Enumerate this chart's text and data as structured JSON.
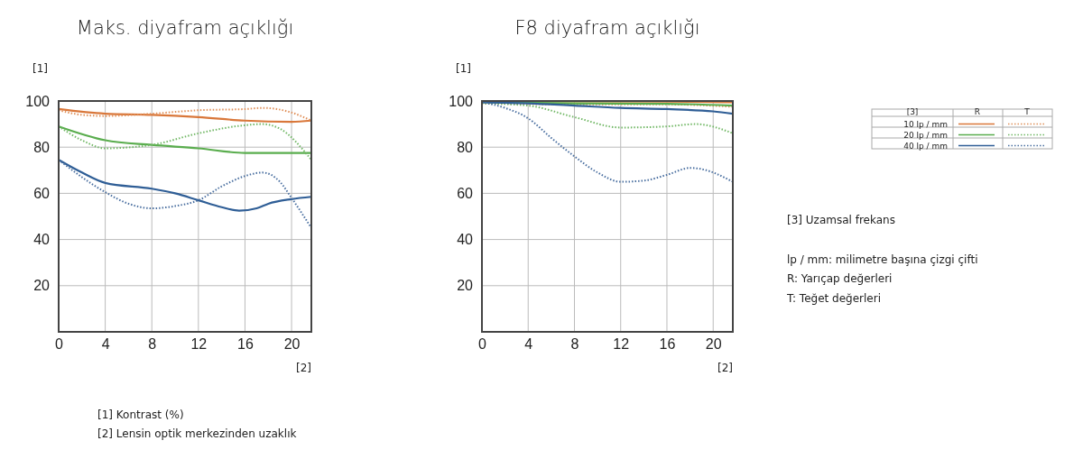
{
  "chart_data": [
    {
      "type": "line",
      "title": "Maks. diyafram açıklığı",
      "xlabel": "[2]",
      "ylabel": "[1]",
      "xlim": [
        0,
        21.7
      ],
      "ylim": [
        0,
        100
      ],
      "xticks": [
        0,
        4,
        8,
        12,
        16,
        20
      ],
      "yticks": [
        {
          "value": 0,
          "label": null
        },
        20,
        40,
        60,
        80,
        100
      ],
      "grid": true,
      "legend": false,
      "annotations": [
        "[1] Kontrast (%)",
        "[2] Lensin optik merkezinden uzaklık"
      ],
      "series": [
        {
          "color": "#d9773a",
          "line_style": "solid",
          "x": [
            0,
            4,
            8,
            12,
            16,
            20,
            21.7
          ],
          "values": [
            96.5,
            94.5,
            94,
            93,
            91.5,
            91,
            91.5
          ]
        },
        {
          "color": "#e0905a",
          "line_style": "dotted",
          "x": [
            0,
            2,
            4,
            8,
            12,
            16,
            17.5,
            20,
            21.7
          ],
          "values": [
            96,
            94,
            93.5,
            94.5,
            96,
            96.5,
            97,
            95,
            91.5
          ]
        },
        {
          "color": "#5aad4e",
          "line_style": "solid",
          "x": [
            0,
            4,
            8,
            12,
            16,
            20,
            21.7
          ],
          "values": [
            89,
            83,
            81,
            79.5,
            77.5,
            77.5,
            77.5
          ]
        },
        {
          "color": "#72b866",
          "line_style": "dotted",
          "x": [
            0,
            2,
            4,
            8,
            12,
            16,
            17.5,
            19,
            21.7
          ],
          "values": [
            89,
            83,
            79.5,
            81,
            86,
            89.5,
            90,
            88,
            74.5
          ]
        },
        {
          "color": "#2f5e96",
          "line_style": "solid",
          "x": [
            0,
            2,
            4,
            8,
            10,
            12,
            14,
            15.5,
            17,
            18,
            20,
            21.7
          ],
          "values": [
            74.5,
            69,
            64.5,
            62,
            60,
            57,
            54,
            52.5,
            53.5,
            55.5,
            57.5,
            58.5
          ]
        },
        {
          "color": "#4a6fa0",
          "line_style": "dotted",
          "x": [
            0,
            2,
            4,
            6,
            8,
            10,
            12,
            14,
            16,
            17.5,
            19,
            20,
            21.7
          ],
          "values": [
            74.5,
            67,
            60.5,
            55.5,
            53.5,
            54.5,
            57,
            63,
            67.5,
            69,
            65,
            58,
            45
          ]
        }
      ]
    },
    {
      "type": "line",
      "title": "F8 diyafram açıklığı",
      "xlabel": "[2]",
      "ylabel": "[1]",
      "xlim": [
        0,
        21.7
      ],
      "ylim": [
        0,
        100
      ],
      "xticks": [
        0,
        4,
        8,
        12,
        16,
        20
      ],
      "yticks": [
        {
          "value": 0,
          "label": null
        },
        20,
        40,
        60,
        80,
        100
      ],
      "grid": true,
      "legend": "right",
      "legend_title": "[3]",
      "annotations": [
        "R",
        "T",
        "[3] Uzamsal frekans",
        "lp / mm: milimetre başına çizgi çifti",
        "R: Yarıçap değerleri",
        "T: Teğet değerleri"
      ],
      "series": [
        {
          "name": "10 lp / mm",
          "color": "#d9773a",
          "line_style": "solid",
          "x": [
            0,
            8,
            16,
            21.7
          ],
          "values": [
            99.8,
            99.8,
            99.7,
            99.5
          ]
        },
        {
          "color": "#e0905a",
          "line_style": "dotted",
          "x": [
            0,
            8,
            16,
            21.7
          ],
          "values": [
            99,
            98.5,
            98.5,
            97.5
          ]
        },
        {
          "name": "20 lp / mm",
          "color": "#5aad4e",
          "line_style": "solid",
          "x": [
            0,
            8,
            16,
            21.7
          ],
          "values": [
            99.5,
            99,
            98.8,
            98
          ]
        },
        {
          "color": "#72b866",
          "line_style": "dotted",
          "x": [
            0,
            4,
            8,
            12,
            16,
            18.5,
            21.7
          ],
          "values": [
            99,
            98,
            93,
            88.5,
            89,
            90,
            86
          ]
        },
        {
          "name": "40 lp / mm",
          "color": "#2f5e96",
          "line_style": "solid",
          "x": [
            0,
            4,
            8,
            12,
            16,
            20,
            21.7
          ],
          "values": [
            99.5,
            99,
            98,
            97,
            96.5,
            95.5,
            94.5
          ]
        },
        {
          "color": "#4a6fa0",
          "line_style": "dotted",
          "x": [
            0,
            2,
            4,
            6,
            8,
            10,
            12,
            14,
            16,
            18,
            19,
            21.7
          ],
          "values": [
            99.5,
            97,
            92.5,
            84,
            76,
            69,
            65,
            65.5,
            68,
            71,
            70.5,
            65
          ]
        }
      ]
    }
  ]
}
